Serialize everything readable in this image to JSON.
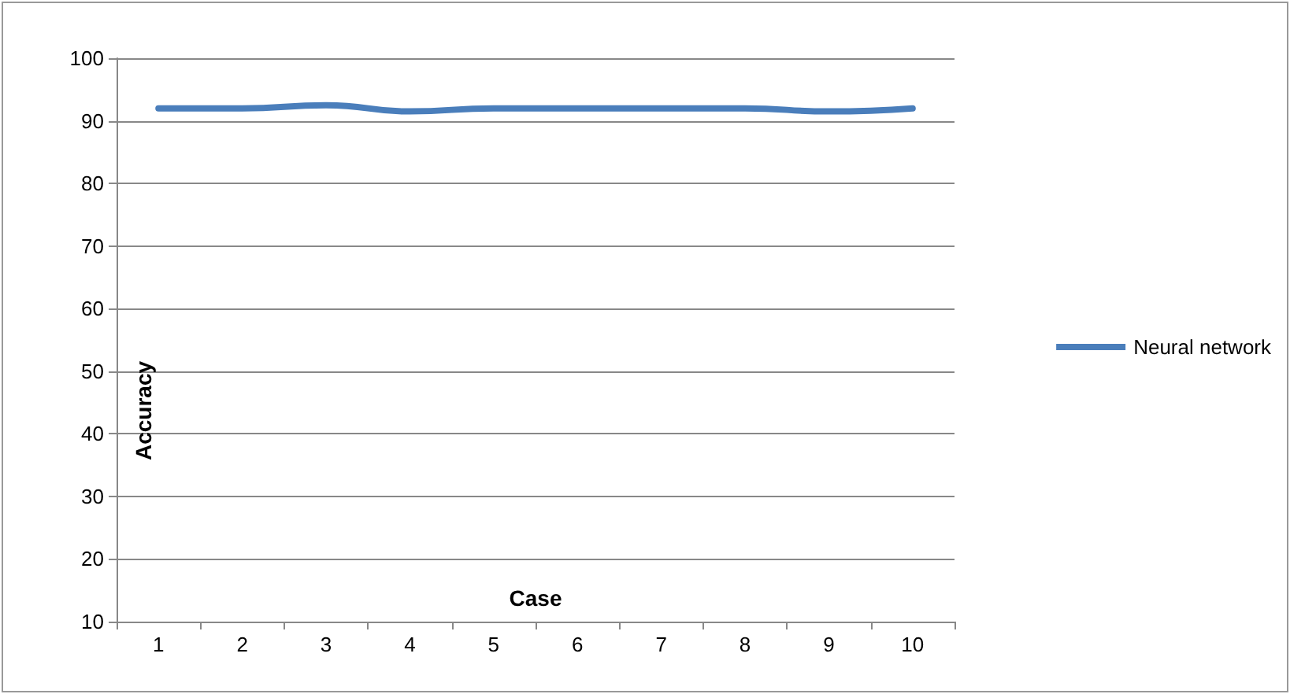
{
  "chart_data": {
    "type": "line",
    "xlabel": "Case",
    "ylabel": "Accuracy",
    "categories": [
      "1",
      "2",
      "3",
      "4",
      "5",
      "6",
      "7",
      "8",
      "9",
      "10"
    ],
    "series": [
      {
        "name": "Neural network",
        "color": "#4a7ebb",
        "values": [
          92,
          92,
          92.5,
          91.5,
          92,
          92,
          92,
          92,
          91.5,
          92
        ]
      }
    ],
    "ylim": [
      10,
      100
    ],
    "yticks": [
      10,
      20,
      30,
      40,
      50,
      60,
      70,
      80,
      90,
      100
    ],
    "grid": "y",
    "legend": "right",
    "marker": "none",
    "line_style": "solid"
  }
}
